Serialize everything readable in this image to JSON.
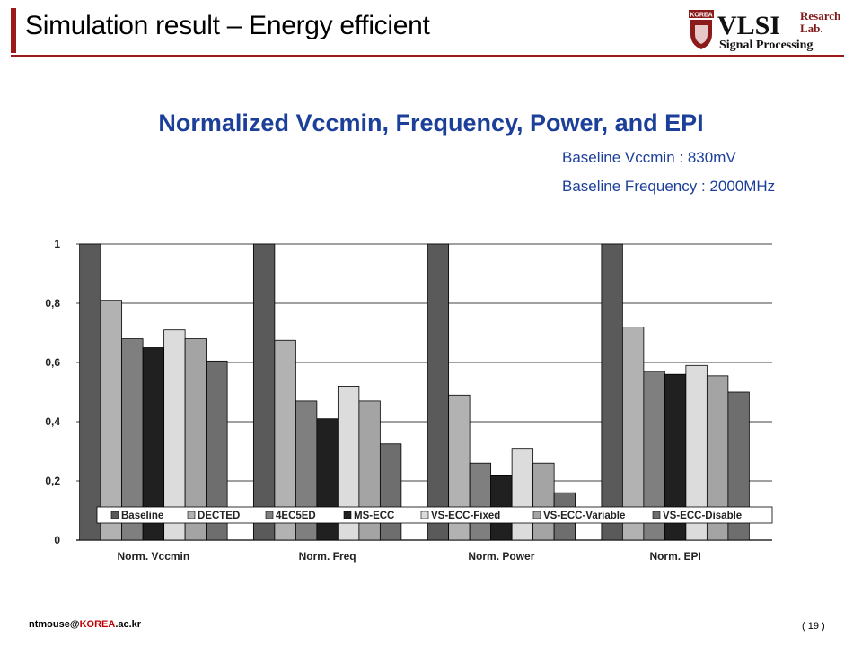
{
  "slide": {
    "title": "Simulation result – Energy efficient",
    "logo": {
      "korea": "KOREA",
      "vlsi": "VLSI",
      "research": "Resarch",
      "lab": "Lab.",
      "signal": "Signal Processing"
    },
    "notes": [
      "Baseline Vccmin : 830mV",
      "Baseline Frequency : 2000MHz"
    ],
    "footer": {
      "email_prefix": "ntmouse@",
      "email_red": "KOREA",
      "email_suffix": ".ac.kr",
      "page": "( 19 )"
    }
  },
  "chart_data": {
    "type": "bar",
    "title": "Normalized Vccmin, Frequency, Power, and EPI",
    "xlabel": "",
    "ylabel": "",
    "categories": [
      "Norm. Vccmin",
      "Norm. Freq",
      "Norm. Power",
      "Norm. EPI"
    ],
    "ylim": [
      0,
      1
    ],
    "yticks": [
      "0",
      "0,2",
      "0,4",
      "0,6",
      "0,8",
      "1"
    ],
    "grid": true,
    "legend_position": "bottom-inside",
    "series": [
      {
        "name": "Baseline",
        "color": "#5a5a5a",
        "values": [
          1.0,
          1.0,
          1.0,
          1.0
        ]
      },
      {
        "name": "DECTED",
        "color": "#b2b2b2",
        "values": [
          0.81,
          0.675,
          0.49,
          0.72
        ]
      },
      {
        "name": "4EC5ED",
        "color": "#7f7f7f",
        "values": [
          0.68,
          0.47,
          0.26,
          0.57
        ]
      },
      {
        "name": "MS-ECC",
        "color": "#202020",
        "values": [
          0.65,
          0.41,
          0.22,
          0.56
        ]
      },
      {
        "name": "VS-ECC-Fixed",
        "color": "#dcdcdc",
        "values": [
          0.71,
          0.52,
          0.31,
          0.59
        ]
      },
      {
        "name": "VS-ECC-Variable",
        "color": "#a4a4a4",
        "values": [
          0.68,
          0.47,
          0.26,
          0.555
        ]
      },
      {
        "name": "VS-ECC-Disable",
        "color": "#6e6e6e",
        "values": [
          0.605,
          0.325,
          0.16,
          0.5
        ]
      }
    ]
  }
}
